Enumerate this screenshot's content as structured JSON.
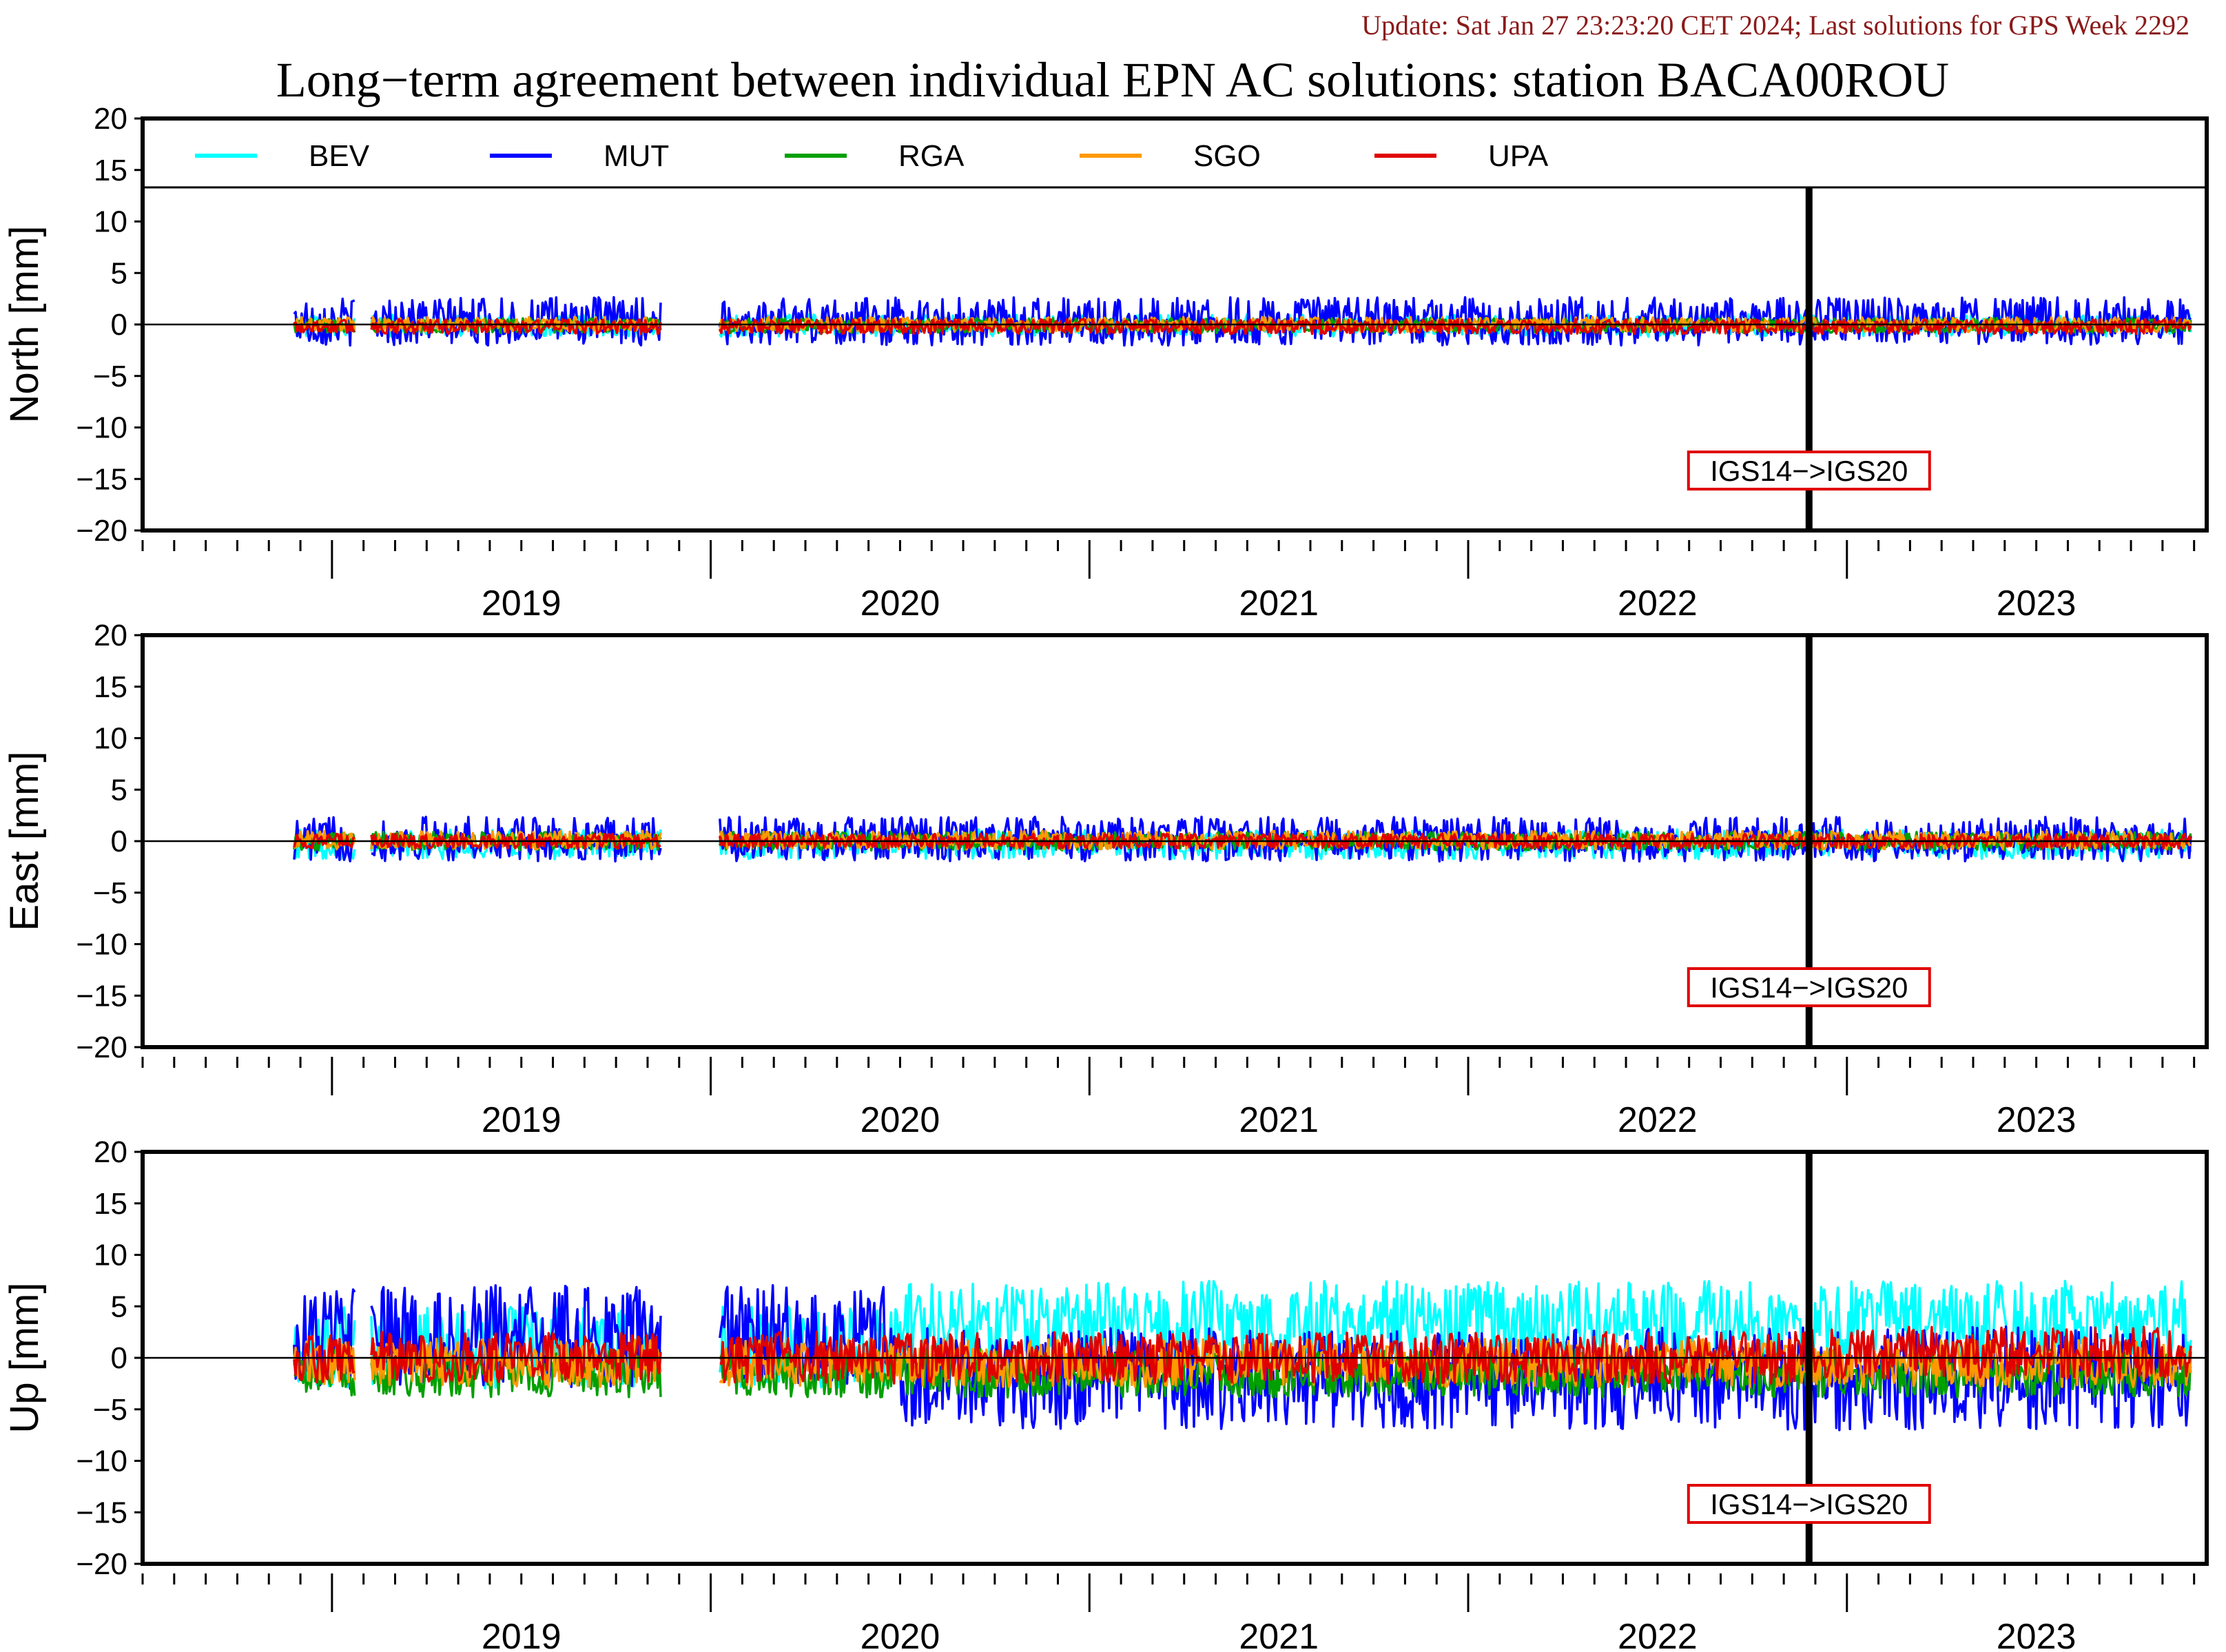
{
  "header": {
    "update": "Update: Sat Jan 27 23:23:20 CET 2024; Last solutions for GPS Week 2292",
    "title": "Long−term agreement between individual EPN AC solutions: station BACA00ROU"
  },
  "colors": {
    "BEV": "#00ffff",
    "MUT": "#0000ff",
    "RGA": "#00a000",
    "SGO": "#ff9900",
    "UPA": "#e00000",
    "annotation_box": "#e00000",
    "frame": "#000000"
  },
  "legend": [
    {
      "name": "BEV",
      "color": "#00ffff"
    },
    {
      "name": "MUT",
      "color": "#0000ff"
    },
    {
      "name": "RGA",
      "color": "#00a000"
    },
    {
      "name": "SGO",
      "color": "#ff9900"
    },
    {
      "name": "UPA",
      "color": "#e00000"
    }
  ],
  "annotation": "IGS14−>IGS20",
  "chart_data": [
    {
      "type": "line",
      "panel": "north",
      "ylabel": "North [mm]",
      "ylim": [
        -20,
        20
      ],
      "yticks": [
        -20,
        -15,
        -10,
        -5,
        0,
        5,
        10,
        15,
        20
      ],
      "xlim": [
        2018.5,
        2023.95
      ],
      "year_labels": [
        "2019",
        "2020",
        "2021",
        "2022",
        "2023"
      ],
      "frame_change_epoch": 2022.9,
      "has_legend": true,
      "gaps": [
        [
          2019.06,
          2019.1
        ],
        [
          2019.87,
          2020.02
        ]
      ],
      "series": [
        {
          "name": "BEV",
          "amp": 0.6,
          "bias": -0.1
        },
        {
          "name": "MUT",
          "amp": 1.3,
          "bias": 0.3
        },
        {
          "name": "RGA",
          "amp": 0.4,
          "bias": -0.1
        },
        {
          "name": "SGO",
          "amp": 0.4,
          "bias": 0.0
        },
        {
          "name": "UPA",
          "amp": 0.4,
          "bias": -0.2
        }
      ]
    },
    {
      "type": "line",
      "panel": "east",
      "ylabel": "East [mm]",
      "ylim": [
        -20,
        20
      ],
      "yticks": [
        -20,
        -15,
        -10,
        -5,
        0,
        5,
        10,
        15,
        20
      ],
      "xlim": [
        2018.5,
        2023.95
      ],
      "year_labels": [
        "2019",
        "2020",
        "2021",
        "2022",
        "2023"
      ],
      "frame_change_epoch": 2022.9,
      "has_legend": false,
      "gaps": [
        [
          2019.06,
          2019.1
        ],
        [
          2019.87,
          2020.02
        ]
      ],
      "series": [
        {
          "name": "BEV",
          "amp": 0.8,
          "bias": -0.3
        },
        {
          "name": "MUT",
          "amp": 1.2,
          "bias": 0.2
        },
        {
          "name": "RGA",
          "amp": 0.5,
          "bias": 0.0
        },
        {
          "name": "SGO",
          "amp": 0.5,
          "bias": 0.1
        },
        {
          "name": "UPA",
          "amp": 0.4,
          "bias": 0.0
        }
      ]
    },
    {
      "type": "line",
      "panel": "up",
      "ylabel": "Up [mm]",
      "ylim": [
        -20,
        20
      ],
      "yticks": [
        -20,
        -15,
        -10,
        -5,
        0,
        5,
        10,
        15,
        20
      ],
      "xlim": [
        2018.5,
        2023.95
      ],
      "year_labels": [
        "2019",
        "2020",
        "2021",
        "2022",
        "2023"
      ],
      "frame_change_epoch": 2022.9,
      "has_legend": false,
      "gaps": [
        [
          2019.06,
          2019.1
        ],
        [
          2019.87,
          2020.02
        ]
      ],
      "series": [
        {
          "name": "BEV",
          "amp": 2.2,
          "bias": 3.5
        },
        {
          "name": "MUT",
          "amp": 2.8,
          "bias": -2.0
        },
        {
          "name": "RGA",
          "amp": 1.3,
          "bias": -1.5
        },
        {
          "name": "SGO",
          "amp": 1.3,
          "bias": -0.5
        },
        {
          "name": "UPA",
          "amp": 1.4,
          "bias": 0.0
        }
      ]
    }
  ]
}
